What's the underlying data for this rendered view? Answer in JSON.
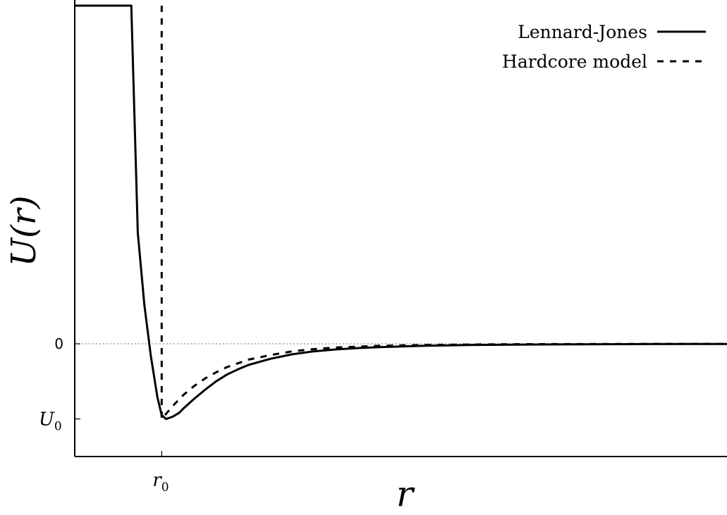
{
  "chart_data": {
    "type": "line",
    "title": "",
    "xlabel": "r",
    "ylabel": "U(r)",
    "xlim": [
      0.6,
      3.6
    ],
    "ylim": [
      -1.5,
      4.5
    ],
    "x_ticks": [
      {
        "value": 1.0,
        "label_main": "r",
        "label_sub": "0"
      }
    ],
    "y_ticks": [
      {
        "value": 0,
        "label_main": "0",
        "label_sub": ""
      },
      {
        "value": -1,
        "label_main": "U",
        "label_sub": "0"
      }
    ],
    "r0": 1.0,
    "U0": -1.0,
    "zero_line": {
      "style": "dotted",
      "color": "#888888"
    },
    "grid": false,
    "legend": {
      "position": "top-right"
    },
    "series": [
      {
        "name": "Lennard-Jones",
        "style": "solid",
        "color": "#000000",
        "x": [
          0.6,
          0.86,
          0.89,
          0.92,
          0.95,
          0.98,
          1.0,
          1.02,
          1.05,
          1.08,
          1.1,
          1.15,
          1.2,
          1.25,
          1.3,
          1.35,
          1.4,
          1.5,
          1.6,
          1.7,
          1.8,
          1.9,
          2.0,
          2.2,
          2.4,
          2.6,
          2.8,
          3.0,
          3.2,
          3.4,
          3.6
        ],
        "y": [
          4.5,
          4.5,
          1.48,
          0.52,
          -0.16,
          -0.71,
          -0.95,
          -1.0,
          -0.97,
          -0.92,
          -0.86,
          -0.73,
          -0.61,
          -0.5,
          -0.41,
          -0.34,
          -0.28,
          -0.2,
          -0.14,
          -0.1,
          -0.075,
          -0.057,
          -0.044,
          -0.027,
          -0.017,
          -0.011,
          -0.008,
          -0.006,
          -0.004,
          -0.003,
          -0.002
        ]
      },
      {
        "name": "Hardcore model",
        "style": "dashed",
        "color": "#000000",
        "x": [
          1.0,
          1.0,
          1.05,
          1.1,
          1.15,
          1.2,
          1.25,
          1.3,
          1.4,
          1.5,
          1.6,
          1.7,
          1.8,
          2.0,
          2.2,
          2.4,
          2.6,
          2.8,
          3.0,
          3.2,
          3.4,
          3.6
        ],
        "y": [
          4.5,
          -1.0,
          -0.83,
          -0.68,
          -0.56,
          -0.46,
          -0.38,
          -0.31,
          -0.21,
          -0.15,
          -0.1,
          -0.07,
          -0.05,
          -0.027,
          -0.016,
          -0.01,
          -0.006,
          -0.004,
          -0.003,
          -0.002,
          -0.001,
          -0.001
        ]
      }
    ]
  }
}
